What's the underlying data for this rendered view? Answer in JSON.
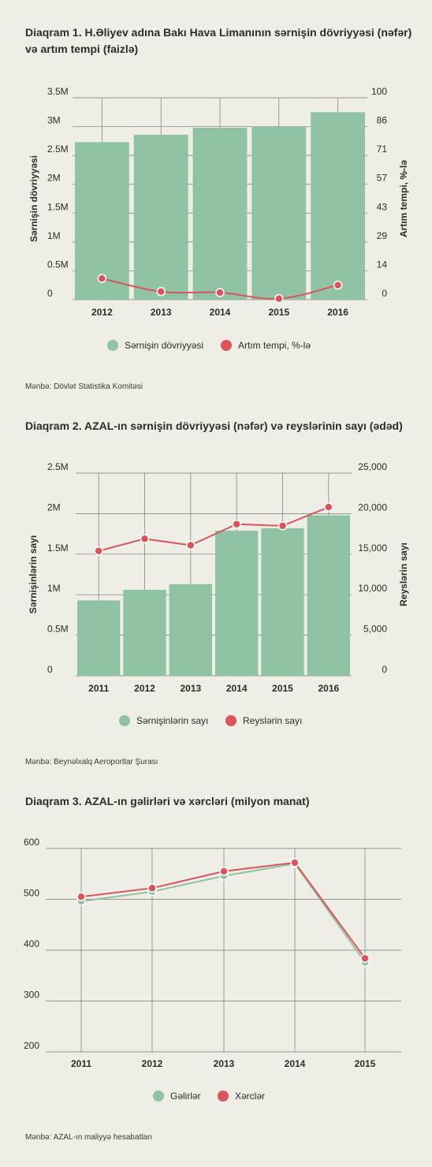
{
  "colors": {
    "green": "#8fc3a3",
    "red": "#d9545b",
    "grid": "#777777",
    "background": "#eeede6"
  },
  "charts": [
    {
      "title": "Diaqram 1. H.Əliyev adına Bakı Hava Limanının sərnişin dövriyyəsi (nəfər) və artım tempi (faizlə)",
      "source": "Mənbə: Dövlət Statistika Komitəsi",
      "left_axis_title": "Sərnişin dövriyyəsi",
      "right_axis_title": "Artım tempi, %-lə",
      "legend": [
        "Sərnişin dövriyyəsi",
        "Artım tempi, %-lə"
      ]
    },
    {
      "title": "Diaqram 2. AZAL-ın sərnişin dövriyyəsi (nəfər) və reyslərinin sayı (ədəd)",
      "source": "Mənbə: Beynəlxalq Aeroportlar Şurası",
      "left_axis_title": "Sərnişinlərin sayı",
      "right_axis_title": "Reyslərin sayı",
      "legend": [
        "Sərnişinlərin sayı",
        "Reyslərin sayı"
      ]
    },
    {
      "title": "Diaqram 3. AZAL-ın gəlirləri və xərcləri (milyon manat)",
      "source": "Mənbə: AZAL-ın maliyyə hesabatları",
      "left_axis_title": "",
      "right_axis_title": "",
      "legend": [
        "Gəlirlər",
        "Xərclər"
      ]
    }
  ],
  "chart_data": [
    {
      "type": "bar",
      "categories": [
        "2012",
        "2013",
        "2014",
        "2015",
        "2016"
      ],
      "series": [
        {
          "name": "Sərnişin dövriyyəsi",
          "type": "bar",
          "axis": "left",
          "values": [
            2730000,
            2860000,
            2980000,
            3000000,
            3250000
          ]
        },
        {
          "name": "Artım tempi, %-lə",
          "type": "line",
          "axis": "right",
          "values": [
            7.5,
            1.0,
            0.5,
            -2.5,
            4.2
          ]
        }
      ],
      "left_ticks": [
        "0",
        "0.5M",
        "1M",
        "1.5M",
        "2M",
        "2.5M",
        "3M",
        "3.5M"
      ],
      "left_ylim": [
        0,
        3500000
      ],
      "right_ticks": [
        "0",
        "14",
        "29",
        "43",
        "57",
        "71",
        "86",
        "100"
      ],
      "right_ylim": [
        0,
        100
      ],
      "xlabel": "",
      "ylabel": "Sərnişin dövriyyəsi",
      "y2label": "Artım tempi, %-lə"
    },
    {
      "type": "bar",
      "categories": [
        "2011",
        "2012",
        "2013",
        "2014",
        "2015",
        "2016"
      ],
      "series": [
        {
          "name": "Sərnişinlərin sayı",
          "type": "bar",
          "axis": "left",
          "values": [
            930000,
            1060000,
            1130000,
            1790000,
            1820000,
            1980000
          ]
        },
        {
          "name": "Reyslərin sayı",
          "type": "line",
          "axis": "right",
          "values": [
            15400,
            16900,
            16100,
            18700,
            18500,
            20800
          ]
        }
      ],
      "left_ticks": [
        "0",
        "0.5M",
        "1M",
        "1.5M",
        "2M",
        "2.5M"
      ],
      "left_ylim": [
        0,
        2500000
      ],
      "right_ticks": [
        "0",
        "5,000",
        "10,000",
        "15,000",
        "20,000",
        "25,000"
      ],
      "right_ylim": [
        0,
        25000
      ],
      "xlabel": "",
      "ylabel": "Sərnişinlərin sayı",
      "y2label": "Reyslərin sayı"
    },
    {
      "type": "line",
      "categories": [
        "2011",
        "2012",
        "2013",
        "2014",
        "2015"
      ],
      "series": [
        {
          "name": "Gəlirlər",
          "values": [
            496,
            515,
            546,
            570,
            376
          ]
        },
        {
          "name": "Xərclər",
          "values": [
            505,
            522,
            555,
            572,
            384
          ]
        }
      ],
      "y_ticks": [
        "200",
        "300",
        "400",
        "500",
        "600"
      ],
      "ylim": [
        200,
        600
      ],
      "xlabel": "",
      "ylabel": ""
    }
  ]
}
